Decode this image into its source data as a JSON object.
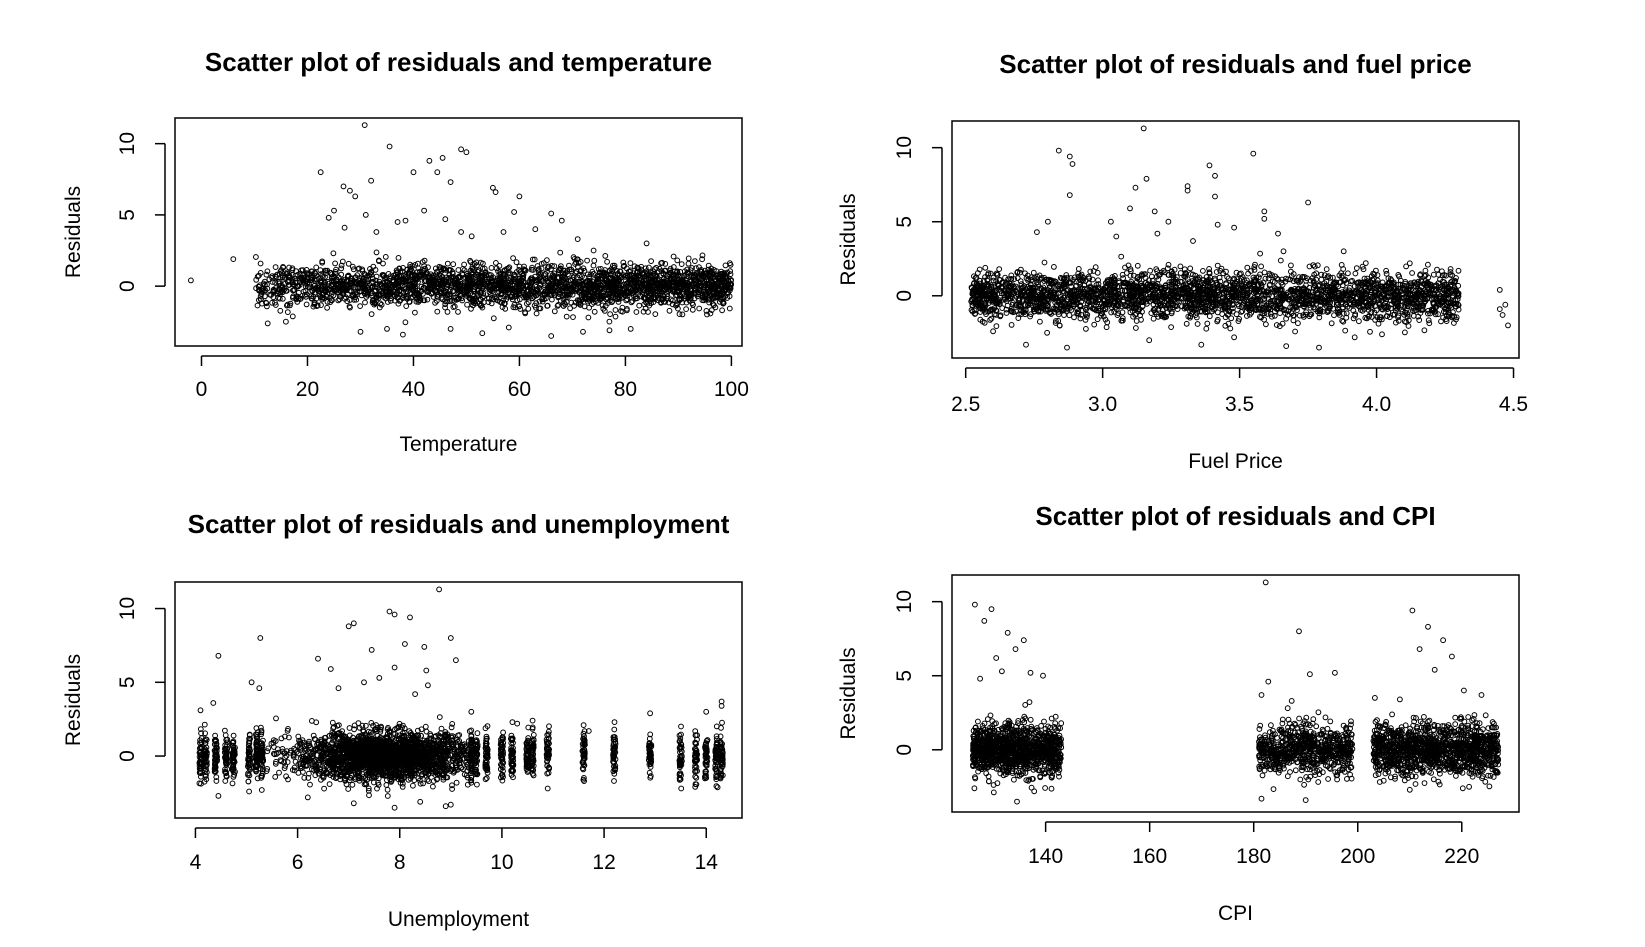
{
  "chart_data": [
    {
      "type": "scatter",
      "title": "Scatter plot of residuals and temperature",
      "xlabel": "Temperature",
      "ylabel": "Residuals",
      "xlim": [
        -5,
        102
      ],
      "ylim": [
        -4.2,
        11.8
      ],
      "xticks": [
        0,
        20,
        40,
        60,
        80,
        100
      ],
      "yticks": [
        0,
        5,
        10
      ],
      "marker_color": "#000000",
      "series": [
        {
          "points": [
            [
              -2,
              0.4
            ],
            [
              6,
              1.9
            ],
            [
              22.5,
              8.0
            ],
            [
              26.8,
              7.0
            ],
            [
              28,
              6.7
            ],
            [
              30.8,
              11.3
            ],
            [
              31,
              5.0
            ],
            [
              32,
              7.4
            ],
            [
              35.5,
              9.8
            ],
            [
              40,
              8.0
            ],
            [
              42,
              5.3
            ],
            [
              43,
              8.8
            ],
            [
              44.5,
              8.0
            ],
            [
              45.5,
              9.0
            ],
            [
              47,
              7.3
            ],
            [
              49,
              9.6
            ],
            [
              50,
              9.4
            ],
            [
              55,
              6.9
            ],
            [
              55.5,
              6.6
            ],
            [
              60,
              6.3
            ],
            [
              66,
              5.1
            ],
            [
              68,
              4.6
            ],
            [
              24,
              4.8
            ],
            [
              25,
              5.3
            ],
            [
              27,
              4.1
            ],
            [
              29,
              6.3
            ],
            [
              33,
              3.8
            ],
            [
              37,
              4.5
            ],
            [
              38.5,
              4.6
            ],
            [
              46,
              4.7
            ],
            [
              49,
              3.8
            ],
            [
              51,
              3.5
            ],
            [
              57,
              3.8
            ],
            [
              59,
              5.2
            ],
            [
              63,
              4.0
            ],
            [
              71,
              3.3
            ],
            [
              74,
              2.5
            ],
            [
              84,
              3.0
            ],
            [
              30,
              -3.2
            ],
            [
              35,
              -3.0
            ],
            [
              38,
              -3.4
            ],
            [
              47,
              -3.0
            ],
            [
              53,
              -3.3
            ],
            [
              66,
              -3.5
            ],
            [
              72,
              -3.2
            ],
            [
              77,
              -3.1
            ],
            [
              81,
              -3.0
            ],
            [
              58,
              -2.9
            ]
          ]
        }
      ]
    },
    {
      "type": "scatter",
      "title": "Scatter plot of residuals and fuel price",
      "xlabel": "Fuel Price",
      "ylabel": "Residuals",
      "xlim": [
        2.45,
        4.52
      ],
      "ylim": [
        -4.2,
        11.8
      ],
      "xticks": [
        2.5,
        3.0,
        3.5,
        4.0,
        4.5
      ],
      "yticks": [
        0,
        5,
        10
      ],
      "marker_color": "#000000",
      "series": [
        {
          "points": [
            [
              2.84,
              9.8
            ],
            [
              2.88,
              9.4
            ],
            [
              2.89,
              8.9
            ],
            [
              2.88,
              6.8
            ],
            [
              2.8,
              5.0
            ],
            [
              2.76,
              4.3
            ],
            [
              3.03,
              5.0
            ],
            [
              3.1,
              5.9
            ],
            [
              3.12,
              7.3
            ],
            [
              3.15,
              11.3
            ],
            [
              3.16,
              7.9
            ],
            [
              3.19,
              5.7
            ],
            [
              3.24,
              5.0
            ],
            [
              3.31,
              7.4
            ],
            [
              3.31,
              7.1
            ],
            [
              3.39,
              8.8
            ],
            [
              3.41,
              8.1
            ],
            [
              3.41,
              6.7
            ],
            [
              3.55,
              9.6
            ],
            [
              3.59,
              5.7
            ],
            [
              3.59,
              5.2
            ],
            [
              3.75,
              6.3
            ],
            [
              3.42,
              4.8
            ],
            [
              3.33,
              3.7
            ],
            [
              3.2,
              4.2
            ],
            [
              3.05,
              4.0
            ],
            [
              3.48,
              4.6
            ],
            [
              3.64,
              4.2
            ],
            [
              3.88,
              3.0
            ],
            [
              2.6,
              -2.4
            ],
            [
              2.72,
              -3.3
            ],
            [
              2.87,
              -3.5
            ],
            [
              3.17,
              -3.0
            ],
            [
              3.36,
              -3.3
            ],
            [
              3.48,
              -2.8
            ],
            [
              3.67,
              -3.4
            ],
            [
              3.79,
              -3.5
            ],
            [
              3.92,
              -2.8
            ],
            [
              4.02,
              -2.6
            ],
            [
              4.45,
              0.4
            ],
            [
              4.47,
              -0.6
            ],
            [
              4.46,
              -1.3
            ],
            [
              4.48,
              -2.0
            ],
            [
              4.45,
              -0.9
            ],
            [
              4.29,
              -1.6
            ],
            [
              4.29,
              1.2
            ]
          ]
        }
      ]
    },
    {
      "type": "scatter",
      "title": "Scatter plot of residuals and unemployment",
      "xlabel": "Unemployment",
      "ylabel": "Residuals",
      "xlim": [
        3.6,
        14.7
      ],
      "ylim": [
        -4.2,
        11.8
      ],
      "xticks": [
        4,
        6,
        8,
        10,
        12,
        14
      ],
      "yticks": [
        0,
        5,
        10
      ],
      "marker_color": "#000000",
      "series": [
        {
          "points": [
            [
              8.77,
              11.3
            ],
            [
              4.45,
              6.8
            ],
            [
              5.27,
              8.0
            ],
            [
              5.1,
              5.0
            ],
            [
              5.25,
              4.6
            ],
            [
              6.4,
              6.6
            ],
            [
              6.65,
              5.9
            ],
            [
              7.0,
              8.8
            ],
            [
              7.1,
              9.0
            ],
            [
              7.45,
              7.2
            ],
            [
              7.8,
              9.8
            ],
            [
              7.9,
              9.6
            ],
            [
              8.2,
              9.4
            ],
            [
              8.48,
              7.4
            ],
            [
              8.52,
              5.8
            ],
            [
              8.55,
              4.8
            ],
            [
              9.0,
              8.0
            ],
            [
              9.1,
              6.5
            ],
            [
              7.3,
              5.0
            ],
            [
              7.9,
              6.0
            ],
            [
              8.1,
              7.6
            ],
            [
              6.8,
              4.6
            ],
            [
              7.6,
              5.3
            ],
            [
              8.3,
              4.2
            ],
            [
              4.1,
              3.1
            ],
            [
              4.35,
              3.6
            ],
            [
              10.3,
              2.2
            ],
            [
              10.6,
              2.4
            ],
            [
              14.3,
              3.7
            ],
            [
              14.3,
              3.4
            ],
            [
              14.0,
              3.0
            ],
            [
              12.9,
              2.9
            ],
            [
              12.2,
              1.8
            ],
            [
              11.7,
              1.7
            ],
            [
              7.1,
              -3.2
            ],
            [
              7.9,
              -3.5
            ],
            [
              8.4,
              -3.1
            ],
            [
              8.9,
              -3.4
            ],
            [
              9.0,
              -3.3
            ],
            [
              6.2,
              -2.8
            ],
            [
              4.45,
              -2.7
            ],
            [
              5.05,
              -2.4
            ],
            [
              5.3,
              -2.3
            ]
          ]
        }
      ]
    },
    {
      "type": "scatter",
      "title": "Scatter plot of residuals and CPI",
      "xlabel": "CPI",
      "ylabel": "Residuals",
      "xlim": [
        122,
        231
      ],
      "ylim": [
        -4.2,
        11.8
      ],
      "xticks": [
        140,
        160,
        180,
        200,
        220
      ],
      "yticks": [
        0,
        5,
        10
      ],
      "marker_color": "#000000",
      "series": [
        {
          "points": [
            [
              126.4,
              9.8
            ],
            [
              128.2,
              8.7
            ],
            [
              129.6,
              9.5
            ],
            [
              132.7,
              7.9
            ],
            [
              135.8,
              7.4
            ],
            [
              134.2,
              6.8
            ],
            [
              130.5,
              6.2
            ],
            [
              139.5,
              5.0
            ],
            [
              137.1,
              5.2
            ],
            [
              131.6,
              5.3
            ],
            [
              127.4,
              4.8
            ],
            [
              182.3,
              11.3
            ],
            [
              182.8,
              4.6
            ],
            [
              181.5,
              3.7
            ],
            [
              188.7,
              8.0
            ],
            [
              190.8,
              5.1
            ],
            [
              195.6,
              5.2
            ],
            [
              187.3,
              3.3
            ],
            [
              210.5,
              9.4
            ],
            [
              211.9,
              6.8
            ],
            [
              213.5,
              8.3
            ],
            [
              216.4,
              7.4
            ],
            [
              218.1,
              6.3
            ],
            [
              214.8,
              5.4
            ],
            [
              220.4,
              4.0
            ],
            [
              208.1,
              3.4
            ],
            [
              203.3,
              3.5
            ],
            [
              223.8,
              3.7
            ],
            [
              181.5,
              -3.3
            ],
            [
              190.0,
              -3.4
            ],
            [
              134.5,
              -3.5
            ],
            [
              137.8,
              -2.8
            ],
            [
              126.3,
              -2.6
            ],
            [
              210.0,
              -2.7
            ],
            [
              220.2,
              -2.6
            ]
          ]
        },
        {
          "points": []
        }
      ]
    }
  ]
}
